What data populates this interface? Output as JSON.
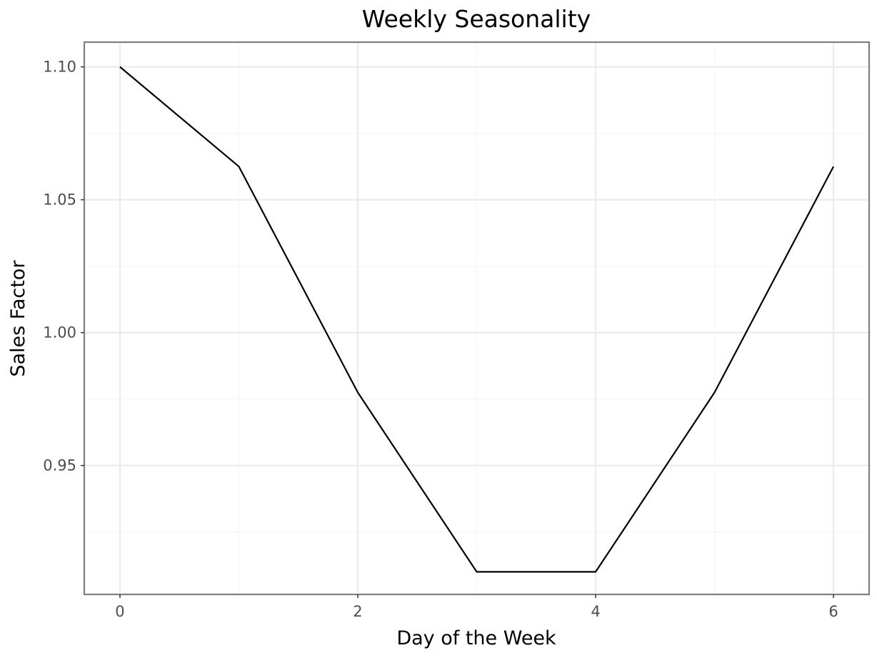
{
  "chart_data": {
    "type": "line",
    "title": "Weekly Seasonality",
    "xlabel": "Day of the Week",
    "ylabel": "Sales Factor",
    "x": [
      0,
      1,
      2,
      3,
      4,
      5,
      6
    ],
    "series": [
      {
        "values": [
          1.1,
          1.0625,
          0.9775,
          0.91,
          0.91,
          0.9775,
          1.0625
        ]
      }
    ],
    "xlim": [
      -0.3,
      6.3
    ],
    "ylim": [
      0.9015,
      1.1093
    ],
    "xticks": [
      0,
      2,
      4,
      6
    ],
    "xtick_labels": [
      "0",
      "2",
      "4",
      "6"
    ],
    "yticks": [
      0.95,
      1.0,
      1.05,
      1.1
    ],
    "ytick_labels": [
      "0.95",
      "1.00",
      "1.05",
      "1.10"
    ],
    "grid": true,
    "legend": "none",
    "colors": {
      "line": "#000000",
      "grid": "#ebebeb",
      "border": "#7f7f7f",
      "tick_text": "#4d4d4d"
    }
  }
}
